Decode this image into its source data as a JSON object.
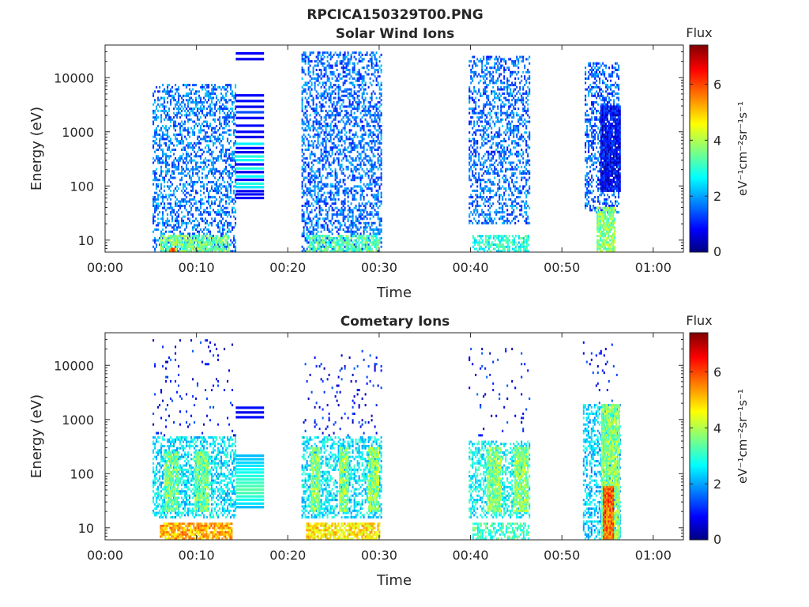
{
  "figure": {
    "title": "RPCICA150329T00.PNG"
  },
  "chart_data": [
    {
      "type": "heatmap",
      "title": "Solar Wind Ions",
      "xlabel": "Time",
      "ylabel": "Energy (eV)",
      "xlim": [
        0,
        63.3
      ],
      "ylim": [
        6,
        40000
      ],
      "yscale": "log",
      "x_ticks": [
        {
          "value": 0,
          "label": "00:00"
        },
        {
          "value": 10,
          "label": "00:10"
        },
        {
          "value": 20,
          "label": "00:20"
        },
        {
          "value": 30,
          "label": "00:30"
        },
        {
          "value": 40,
          "label": "00:40"
        },
        {
          "value": 50,
          "label": "00:50"
        },
        {
          "value": 60,
          "label": "01:00"
        }
      ],
      "y_ticks": [
        {
          "value": 10,
          "label": "10"
        },
        {
          "value": 100,
          "label": "100"
        },
        {
          "value": 1000,
          "label": "1000"
        },
        {
          "value": 10000,
          "label": "10000"
        }
      ],
      "colorbar": {
        "title": "Flux",
        "label": "eV⁻¹cm⁻²sr⁻¹s⁻¹",
        "range": [
          0,
          7.4
        ],
        "ticks": [
          {
            "value": 0,
            "label": "0"
          },
          {
            "value": 2,
            "label": "2"
          },
          {
            "value": 4,
            "label": "4"
          },
          {
            "value": 6,
            "label": "6"
          }
        ],
        "colormap": "jet"
      },
      "observation_spans_minutes": [
        [
          5.2,
          14.2
        ],
        [
          21.5,
          30.2
        ],
        [
          39.8,
          46.5
        ],
        [
          52.3,
          56.3
        ]
      ],
      "cell_blocks": [
        {
          "t": [
            5.2,
            14.2
          ],
          "e": [
            6,
            8000
          ],
          "density": 0.42,
          "flux": 1.8
        },
        {
          "t": [
            6.0,
            13.5
          ],
          "e": [
            6,
            12
          ],
          "density": 0.7,
          "flux": 3.6
        },
        {
          "t": [
            7.0,
            7.6
          ],
          "e": [
            6,
            7
          ],
          "density": 1.0,
          "flux": 5.6
        },
        {
          "t": [
            21.5,
            30.2
          ],
          "e": [
            6,
            30000
          ],
          "density": 0.45,
          "flux": 1.7
        },
        {
          "t": [
            22.0,
            30.0
          ],
          "e": [
            6,
            12
          ],
          "density": 0.7,
          "flux": 3.4
        },
        {
          "t": [
            39.8,
            46.5
          ],
          "e": [
            20,
            25000
          ],
          "density": 0.4,
          "flux": 1.7
        },
        {
          "t": [
            40.2,
            46.4
          ],
          "e": [
            6,
            12
          ],
          "density": 0.6,
          "flux": 3.0
        },
        {
          "t": [
            52.5,
            56.3
          ],
          "e": [
            30,
            20000
          ],
          "density": 0.45,
          "flux": 1.6
        },
        {
          "t": [
            54.2,
            56.3
          ],
          "e": [
            80,
            3000
          ],
          "density": 0.9,
          "flux": 0.8
        },
        {
          "t": [
            53.8,
            55.8
          ],
          "e": [
            6,
            40
          ],
          "density": 0.85,
          "flux": 3.8
        }
      ],
      "energy_bands": {
        "t": [
          14.3,
          17.4
        ],
        "energies": [
          60,
          70,
          80,
          95,
          110,
          130,
          150,
          180,
          210,
          250,
          300,
          350,
          420,
          500,
          600,
          800,
          1000,
          1300,
          1800,
          2300,
          2900,
          3700,
          4700,
          22000,
          28000
        ],
        "flux": [
          0.9,
          1.0,
          0.8,
          2.6,
          3.0,
          0.9,
          2.8,
          0.8,
          3.0,
          0.9,
          2.8,
          3.0,
          0.8,
          1.0,
          2.7,
          0.8,
          0.9,
          1.0,
          0.9,
          1.5,
          0.8,
          1.0,
          0.9,
          0.8,
          0.9
        ]
      }
    },
    {
      "type": "heatmap",
      "title": "Cometary Ions",
      "xlabel": "Time",
      "ylabel": "Energy (eV)",
      "xlim": [
        0,
        63.3
      ],
      "ylim": [
        6,
        40000
      ],
      "yscale": "log",
      "x_ticks": [
        {
          "value": 0,
          "label": "00:00"
        },
        {
          "value": 10,
          "label": "00:10"
        },
        {
          "value": 20,
          "label": "00:20"
        },
        {
          "value": 30,
          "label": "00:30"
        },
        {
          "value": 40,
          "label": "00:40"
        },
        {
          "value": 50,
          "label": "00:50"
        },
        {
          "value": 60,
          "label": "01:00"
        }
      ],
      "y_ticks": [
        {
          "value": 10,
          "label": "10"
        },
        {
          "value": 100,
          "label": "100"
        },
        {
          "value": 1000,
          "label": "1000"
        },
        {
          "value": 10000,
          "label": "10000"
        }
      ],
      "colorbar": {
        "title": "Flux",
        "label": "eV⁻¹cm⁻²sr⁻¹s⁻¹",
        "range": [
          0,
          7.4
        ],
        "ticks": [
          {
            "value": 0,
            "label": "0"
          },
          {
            "value": 2,
            "label": "2"
          },
          {
            "value": 4,
            "label": "4"
          },
          {
            "value": 6,
            "label": "6"
          }
        ],
        "colormap": "jet"
      },
      "observation_spans_minutes": [
        [
          5.2,
          14.2
        ],
        [
          21.5,
          30.2
        ],
        [
          39.8,
          46.5
        ],
        [
          52.3,
          56.3
        ]
      ],
      "cell_blocks": [
        {
          "t": [
            5.2,
            14.2
          ],
          "e": [
            15,
            500
          ],
          "density": 0.5,
          "flux": 2.6
        },
        {
          "t": [
            5.2,
            14.2
          ],
          "e": [
            500,
            30000
          ],
          "density": 0.05,
          "flux": 1.0
        },
        {
          "t": [
            6.5,
            8.0
          ],
          "e": [
            20,
            250
          ],
          "density": 0.85,
          "flux": 3.6
        },
        {
          "t": [
            9.8,
            11.2
          ],
          "e": [
            20,
            250
          ],
          "density": 0.85,
          "flux": 3.6
        },
        {
          "t": [
            6.0,
            13.8
          ],
          "e": [
            6,
            12
          ],
          "density": 0.8,
          "flux": 5.2
        },
        {
          "t": [
            21.5,
            30.2
          ],
          "e": [
            15,
            500
          ],
          "density": 0.5,
          "flux": 2.6
        },
        {
          "t": [
            22.5,
            23.5
          ],
          "e": [
            20,
            300
          ],
          "density": 0.85,
          "flux": 3.8
        },
        {
          "t": [
            25.6,
            26.6
          ],
          "e": [
            20,
            300
          ],
          "density": 0.85,
          "flux": 3.8
        },
        {
          "t": [
            28.8,
            30.0
          ],
          "e": [
            20,
            300
          ],
          "density": 0.85,
          "flux": 3.8
        },
        {
          "t": [
            21.5,
            30.2
          ],
          "e": [
            500,
            20000
          ],
          "density": 0.05,
          "flux": 1.0
        },
        {
          "t": [
            22.0,
            30.0
          ],
          "e": [
            6,
            12
          ],
          "density": 0.8,
          "flux": 4.8
        },
        {
          "t": [
            39.8,
            46.5
          ],
          "e": [
            15,
            400
          ],
          "density": 0.45,
          "flux": 2.8
        },
        {
          "t": [
            41.8,
            43.2
          ],
          "e": [
            20,
            300
          ],
          "density": 0.85,
          "flux": 3.8
        },
        {
          "t": [
            44.8,
            46.3
          ],
          "e": [
            20,
            300
          ],
          "density": 0.85,
          "flux": 3.8
        },
        {
          "t": [
            39.8,
            46.5
          ],
          "e": [
            500,
            25000
          ],
          "density": 0.04,
          "flux": 1.0
        },
        {
          "t": [
            40.2,
            46.4
          ],
          "e": [
            6,
            12
          ],
          "density": 0.6,
          "flux": 3.2
        },
        {
          "t": [
            52.3,
            56.3
          ],
          "e": [
            6,
            2000
          ],
          "density": 0.45,
          "flux": 2.4
        },
        {
          "t": [
            54.3,
            56.3
          ],
          "e": [
            6,
            2000
          ],
          "density": 0.9,
          "flux": 3.8
        },
        {
          "t": [
            54.5,
            55.6
          ],
          "e": [
            6,
            60
          ],
          "density": 1.0,
          "flux": 5.8
        },
        {
          "t": [
            52.3,
            56.3
          ],
          "e": [
            2000,
            30000
          ],
          "density": 0.04,
          "flux": 1.0
        }
      ],
      "energy_bands": {
        "t": [
          14.3,
          17.4
        ],
        "energies": [
          24,
          28,
          33,
          38,
          44,
          51,
          59,
          68,
          78,
          90,
          105,
          120,
          140,
          160,
          185,
          215,
          1100,
          1350,
          1650
        ],
        "flux": [
          2.3,
          2.6,
          2.9,
          3.1,
          3.3,
          3.4,
          3.3,
          3.2,
          3.1,
          3.0,
          2.9,
          2.8,
          2.6,
          2.5,
          2.4,
          2.3,
          1.0,
          0.8,
          1.0
        ]
      }
    }
  ]
}
